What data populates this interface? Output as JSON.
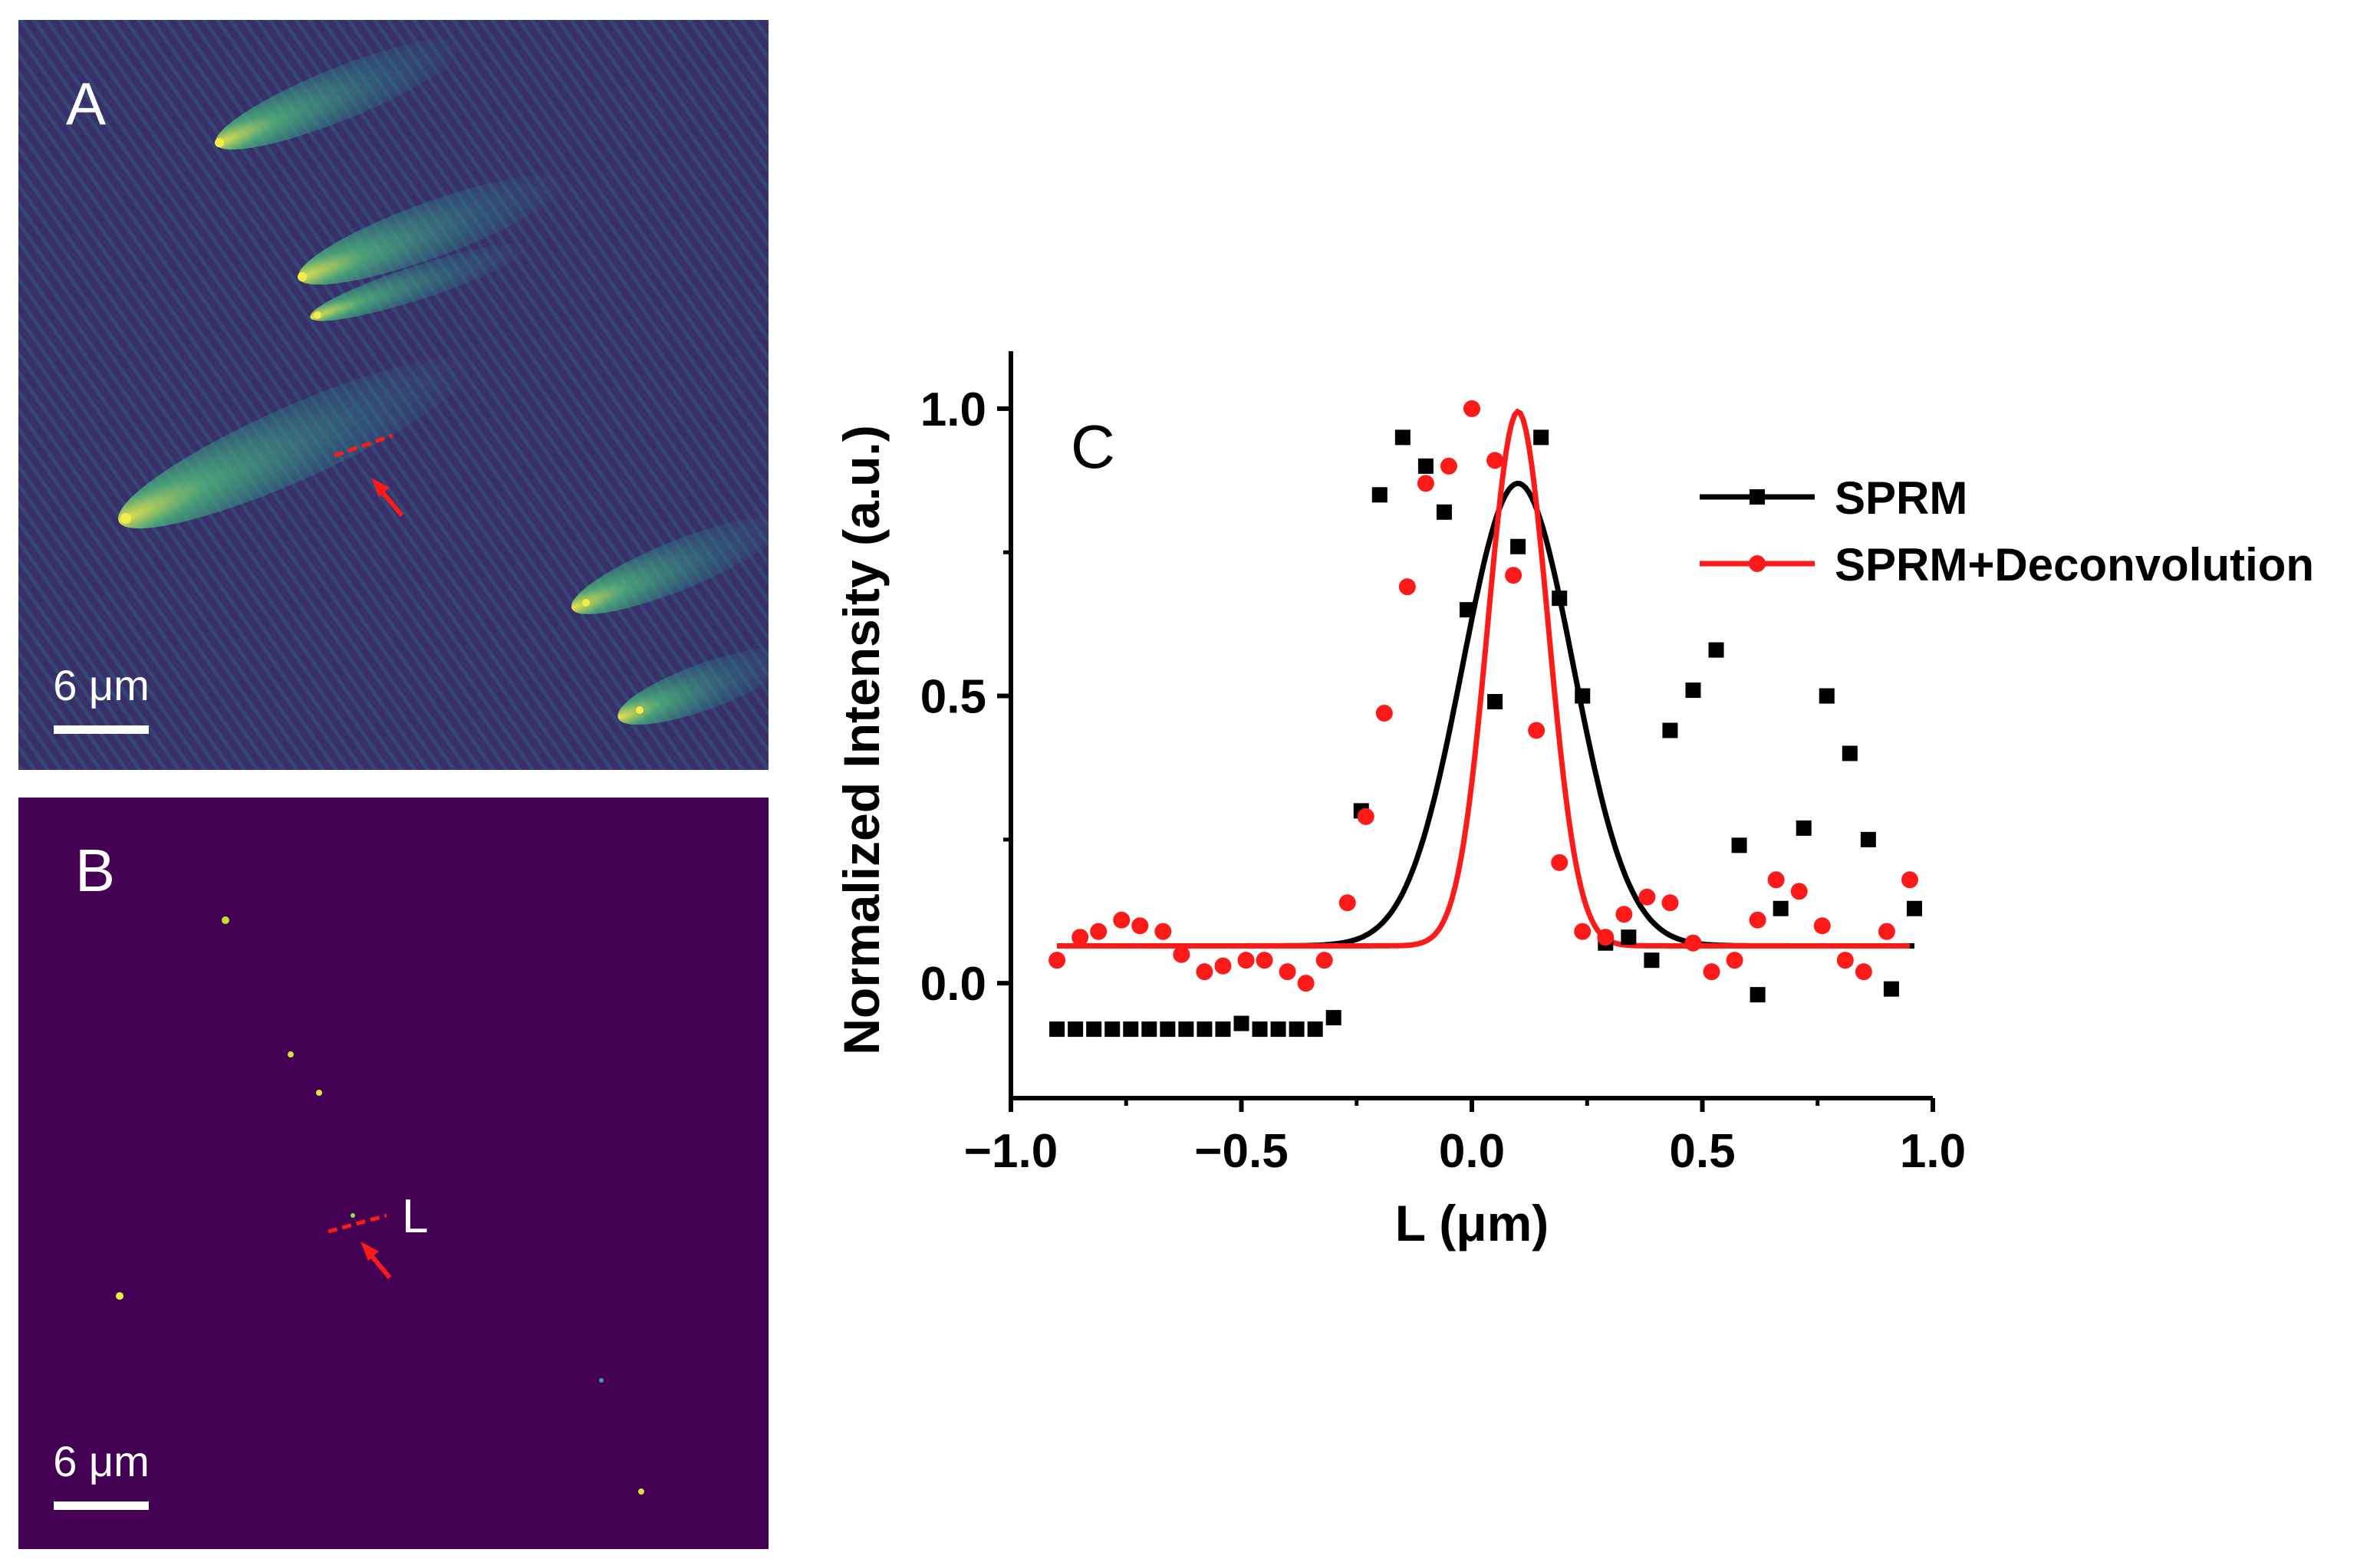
{
  "panels": {
    "a": {
      "label": "A",
      "scalebar": "6 μm"
    },
    "b": {
      "label": "B",
      "scalebar": "6 μm",
      "line_label": "L"
    },
    "c": {
      "label": "C"
    }
  },
  "colors": {
    "panel_a_bg": "#3a2f6b",
    "panel_b_bg": "#440154",
    "speckle": "#f4ec4a",
    "marker_red": "#ff1a1a",
    "sprm": "#000000",
    "deconv": "#ff1a1a"
  },
  "chart_data": {
    "type": "scatter",
    "xlabel": "L (μm)",
    "ylabel": "Normalized Intensity (a.u.)",
    "xlim": [
      -1.0,
      1.0
    ],
    "ylim": [
      -0.2,
      1.1
    ],
    "xticks": [
      -1.0,
      -0.5,
      0.0,
      0.5,
      1.0
    ],
    "xtick_labels": [
      "−1.0",
      "−0.5",
      "0.0",
      "0.5",
      "1.0"
    ],
    "yticks": [
      0.0,
      0.5,
      1.0
    ],
    "ytick_labels": [
      "0.0",
      "0.5",
      "1.0"
    ],
    "legend_position": "top-right",
    "series": [
      {
        "name": "SPRM",
        "marker": "square",
        "color": "#000000",
        "x": [
          -0.9,
          -0.86,
          -0.82,
          -0.78,
          -0.74,
          -0.7,
          -0.66,
          -0.62,
          -0.58,
          -0.54,
          -0.5,
          -0.46,
          -0.42,
          -0.38,
          -0.34,
          -0.3,
          -0.24,
          -0.2,
          -0.15,
          -0.1,
          -0.06,
          -0.01,
          0.05,
          0.1,
          0.15,
          0.19,
          0.24,
          0.29,
          0.34,
          0.39,
          0.43,
          0.48,
          0.53,
          0.58,
          0.62,
          0.67,
          0.72,
          0.77,
          0.82,
          0.86,
          0.91,
          0.96
        ],
        "y": [
          -0.08,
          -0.08,
          -0.08,
          -0.08,
          -0.08,
          -0.08,
          -0.08,
          -0.08,
          -0.08,
          -0.08,
          -0.07,
          -0.08,
          -0.08,
          -0.08,
          -0.08,
          -0.06,
          0.3,
          0.85,
          0.95,
          0.9,
          0.82,
          0.65,
          0.49,
          0.76,
          0.95,
          0.67,
          0.5,
          0.07,
          0.08,
          0.04,
          0.44,
          0.51,
          0.58,
          0.24,
          -0.02,
          0.13,
          0.27,
          0.5,
          0.4,
          0.25,
          -0.01,
          0.13
        ],
        "fit": {
          "baseline": 0.065,
          "amplitude": 0.805,
          "center": 0.1,
          "sigma": 0.12
        }
      },
      {
        "name": "SPRM+Deconvolution",
        "marker": "circle",
        "color": "#ff1a1a",
        "x": [
          -0.9,
          -0.85,
          -0.81,
          -0.76,
          -0.72,
          -0.67,
          -0.63,
          -0.58,
          -0.54,
          -0.49,
          -0.45,
          -0.4,
          -0.36,
          -0.32,
          -0.27,
          -0.23,
          -0.19,
          -0.14,
          -0.1,
          -0.05,
          0.0,
          0.05,
          0.09,
          0.14,
          0.19,
          0.24,
          0.29,
          0.33,
          0.38,
          0.43,
          0.48,
          0.52,
          0.57,
          0.62,
          0.66,
          0.71,
          0.76,
          0.81,
          0.85,
          0.9,
          0.95
        ],
        "y": [
          0.04,
          0.08,
          0.09,
          0.11,
          0.1,
          0.09,
          0.05,
          0.02,
          0.03,
          0.04,
          0.04,
          0.02,
          0.0,
          0.04,
          0.14,
          0.29,
          0.47,
          0.69,
          0.87,
          0.9,
          1.0,
          0.91,
          0.71,
          0.44,
          0.21,
          0.09,
          0.08,
          0.12,
          0.15,
          0.14,
          0.07,
          0.02,
          0.04,
          0.11,
          0.18,
          0.16,
          0.1,
          0.04,
          0.02,
          0.09,
          0.18
        ],
        "fit": {
          "baseline": 0.065,
          "amplitude": 0.93,
          "center": 0.1,
          "sigma": 0.065
        }
      }
    ]
  }
}
